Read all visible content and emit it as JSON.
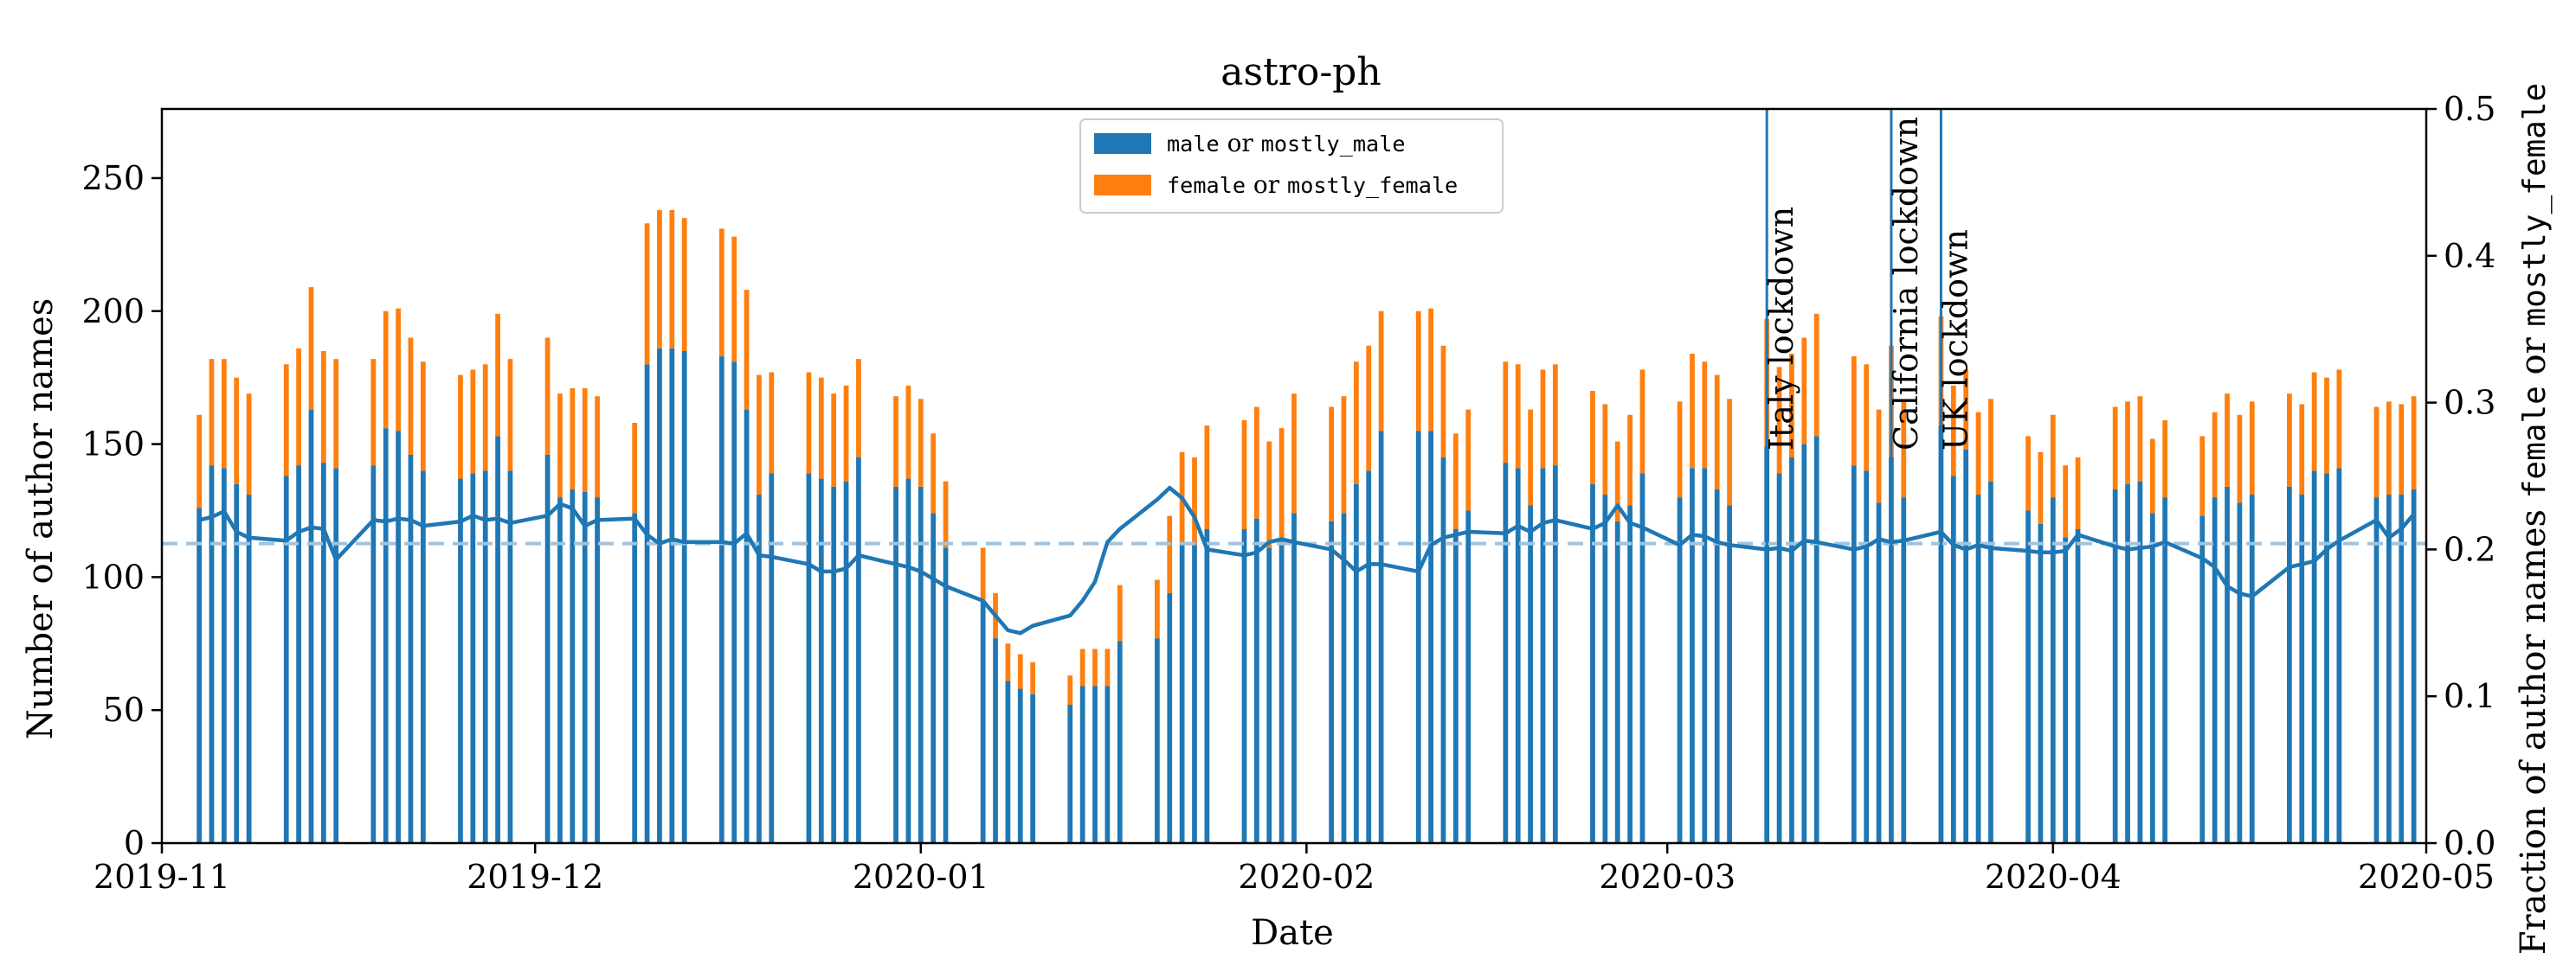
{
  "chart_data": {
    "type": "bar",
    "title": "astro-ph",
    "xlabel": "Date",
    "ylabel": "Number of author names",
    "y2label": {
      "parts": [
        {
          "text": "Fraction of author names ",
          "mono": false
        },
        {
          "text": "female",
          "mono": true
        },
        {
          "text": " or ",
          "mono": false
        },
        {
          "text": "mostly_female",
          "mono": true
        }
      ]
    },
    "xlim": [
      "2019-11-01",
      "2020-05-01"
    ],
    "ylim": [
      0,
      276
    ],
    "y2lim": [
      0,
      0.5
    ],
    "xticks": [
      "2019-11",
      "2019-12",
      "2020-01",
      "2020-02",
      "2020-03",
      "2020-04",
      "2020-05"
    ],
    "yticks": [
      0,
      50,
      100,
      150,
      200,
      250
    ],
    "y2ticks": [
      "0.0",
      "0.1",
      "0.2",
      "0.3",
      "0.4",
      "0.5"
    ],
    "stacked": true,
    "legend_position": "top-center",
    "colors": {
      "male": "#1f77b4",
      "female": "#ff7f0e",
      "fraction_line": "#1f77b4",
      "mean_line": "#9ec4e0",
      "event_line": "#1f77b4"
    },
    "legend": [
      {
        "key": "male",
        "parts": [
          {
            "text": "male",
            "mono": true
          },
          {
            "text": " or ",
            "mono": false
          },
          {
            "text": "mostly_male",
            "mono": true
          }
        ]
      },
      {
        "key": "female",
        "parts": [
          {
            "text": "female",
            "mono": true
          },
          {
            "text": " or ",
            "mono": false
          },
          {
            "text": "mostly_female",
            "mono": true
          }
        ]
      }
    ],
    "events": [
      {
        "date": "2020-03-09",
        "label": "Italy lockdown"
      },
      {
        "date": "2020-03-19",
        "label": "California lockdown"
      },
      {
        "date": "2020-03-23",
        "label": "UK lockdown"
      }
    ],
    "mean_fraction": 0.204,
    "dates": [
      "2019-11-04",
      "2019-11-05",
      "2019-11-06",
      "2019-11-07",
      "2019-11-08",
      "2019-11-11",
      "2019-11-12",
      "2019-11-13",
      "2019-11-14",
      "2019-11-15",
      "2019-11-18",
      "2019-11-19",
      "2019-11-20",
      "2019-11-21",
      "2019-11-22",
      "2019-11-25",
      "2019-11-26",
      "2019-11-27",
      "2019-11-28",
      "2019-11-29",
      "2019-12-02",
      "2019-12-03",
      "2019-12-04",
      "2019-12-05",
      "2019-12-06",
      "2019-12-09",
      "2019-12-10",
      "2019-12-11",
      "2019-12-12",
      "2019-12-13",
      "2019-12-16",
      "2019-12-17",
      "2019-12-18",
      "2019-12-19",
      "2019-12-20",
      "2019-12-23",
      "2019-12-24",
      "2019-12-25",
      "2019-12-26",
      "2019-12-27",
      "2019-12-30",
      "2019-12-31",
      "2020-01-01",
      "2020-01-02",
      "2020-01-03",
      "2020-01-06",
      "2020-01-07",
      "2020-01-08",
      "2020-01-09",
      "2020-01-10",
      "2020-01-13",
      "2020-01-14",
      "2020-01-15",
      "2020-01-16",
      "2020-01-17",
      "2020-01-20",
      "2020-01-21",
      "2020-01-22",
      "2020-01-23",
      "2020-01-24",
      "2020-01-27",
      "2020-01-28",
      "2020-01-29",
      "2020-01-30",
      "2020-01-31",
      "2020-02-03",
      "2020-02-04",
      "2020-02-05",
      "2020-02-06",
      "2020-02-07",
      "2020-02-10",
      "2020-02-11",
      "2020-02-12",
      "2020-02-13",
      "2020-02-14",
      "2020-02-17",
      "2020-02-18",
      "2020-02-19",
      "2020-02-20",
      "2020-02-21",
      "2020-02-24",
      "2020-02-25",
      "2020-02-26",
      "2020-02-27",
      "2020-02-28",
      "2020-03-02",
      "2020-03-03",
      "2020-03-04",
      "2020-03-05",
      "2020-03-06",
      "2020-03-09",
      "2020-03-10",
      "2020-03-11",
      "2020-03-12",
      "2020-03-13",
      "2020-03-16",
      "2020-03-17",
      "2020-03-18",
      "2020-03-19",
      "2020-03-20",
      "2020-03-23",
      "2020-03-24",
      "2020-03-25",
      "2020-03-26",
      "2020-03-27",
      "2020-03-30",
      "2020-03-31",
      "2020-04-01",
      "2020-04-02",
      "2020-04-03",
      "2020-04-06",
      "2020-04-07",
      "2020-04-08",
      "2020-04-09",
      "2020-04-10",
      "2020-04-13",
      "2020-04-14",
      "2020-04-15",
      "2020-04-16",
      "2020-04-17",
      "2020-04-20",
      "2020-04-21",
      "2020-04-22",
      "2020-04-23",
      "2020-04-24",
      "2020-04-27",
      "2020-04-28",
      "2020-04-29",
      "2020-04-30"
    ],
    "series": [
      {
        "key": "male",
        "values": [
          126,
          142,
          141,
          135,
          131,
          138,
          142,
          163,
          143,
          141,
          142,
          156,
          155,
          146,
          140,
          137,
          139,
          140,
          153,
          140,
          146,
          130,
          133,
          132,
          130,
          124,
          180,
          186,
          186,
          185,
          183,
          181,
          163,
          131,
          139,
          139,
          137,
          134,
          136,
          145,
          134,
          137,
          134,
          124,
          111,
          91,
          77,
          61,
          58,
          56,
          52,
          59,
          59,
          59,
          76,
          77,
          94,
          113,
          112,
          118,
          118,
          122,
          111,
          115,
          124,
          121,
          124,
          135,
          140,
          155,
          155,
          155,
          145,
          118,
          125,
          143,
          141,
          127,
          141,
          142,
          135,
          131,
          121,
          127,
          139,
          130,
          141,
          141,
          133,
          127,
          149,
          139,
          145,
          150,
          153,
          142,
          140,
          128,
          145,
          130,
          157,
          138,
          148,
          131,
          136,
          125,
          120,
          130,
          115,
          118,
          133,
          135,
          136,
          124,
          130,
          123,
          130,
          134,
          128,
          131,
          134,
          131,
          140,
          139,
          141,
          130,
          131,
          131,
          133
        ]
      },
      {
        "key": "female",
        "values": [
          35,
          40,
          41,
          40,
          38,
          42,
          44,
          46,
          42,
          41,
          40,
          44,
          46,
          44,
          41,
          39,
          39,
          40,
          46,
          42,
          44,
          39,
          38,
          39,
          38,
          34,
          53,
          52,
          52,
          50,
          48,
          47,
          45,
          45,
          38,
          38,
          38,
          35,
          36,
          37,
          34,
          35,
          33,
          30,
          25,
          20,
          17,
          14,
          13,
          12,
          11,
          14,
          14,
          14,
          21,
          22,
          29,
          34,
          33,
          39,
          41,
          42,
          40,
          41,
          45,
          43,
          44,
          46,
          47,
          45,
          45,
          46,
          42,
          36,
          38,
          38,
          39,
          36,
          37,
          38,
          35,
          34,
          30,
          34,
          39,
          36,
          43,
          40,
          43,
          40,
          48,
          40,
          39,
          40,
          46,
          41,
          40,
          35,
          42,
          36,
          41,
          34,
          30,
          31,
          31,
          28,
          27,
          31,
          27,
          27,
          31,
          31,
          32,
          28,
          29,
          30,
          32,
          35,
          33,
          35,
          35,
          34,
          37,
          36,
          37,
          34,
          35,
          34,
          35
        ]
      }
    ],
    "fraction_line": {
      "name": "female fraction",
      "values": [
        0.22,
        0.222,
        0.226,
        0.212,
        0.208,
        0.206,
        0.212,
        0.215,
        0.214,
        0.193,
        0.22,
        0.219,
        0.221,
        0.22,
        0.216,
        0.219,
        0.223,
        0.22,
        0.221,
        0.218,
        0.223,
        0.231,
        0.228,
        0.216,
        0.22,
        0.221,
        0.21,
        0.204,
        0.207,
        0.205,
        0.205,
        0.204,
        0.211,
        0.196,
        0.195,
        0.19,
        0.185,
        0.185,
        0.187,
        0.196,
        0.19,
        0.188,
        0.185,
        0.18,
        0.175,
        0.165,
        0.155,
        0.145,
        0.143,
        0.148,
        0.155,
        0.165,
        0.178,
        0.205,
        0.214,
        0.234,
        0.242,
        0.235,
        0.222,
        0.2,
        0.196,
        0.198,
        0.205,
        0.207,
        0.205,
        0.2,
        0.193,
        0.185,
        0.19,
        0.19,
        0.185,
        0.203,
        0.208,
        0.21,
        0.212,
        0.211,
        0.216,
        0.212,
        0.218,
        0.22,
        0.214,
        0.218,
        0.23,
        0.218,
        0.215,
        0.203,
        0.21,
        0.209,
        0.205,
        0.203,
        0.2,
        0.201,
        0.199,
        0.206,
        0.205,
        0.2,
        0.202,
        0.207,
        0.205,
        0.206,
        0.212,
        0.203,
        0.2,
        0.203,
        0.201,
        0.199,
        0.198,
        0.198,
        0.199,
        0.21,
        0.202,
        0.2,
        0.201,
        0.202,
        0.205,
        0.194,
        0.188,
        0.175,
        0.17,
        0.168,
        0.188,
        0.19,
        0.192,
        0.2,
        0.206,
        0.22,
        0.208,
        0.214,
        0.224
      ]
    }
  }
}
